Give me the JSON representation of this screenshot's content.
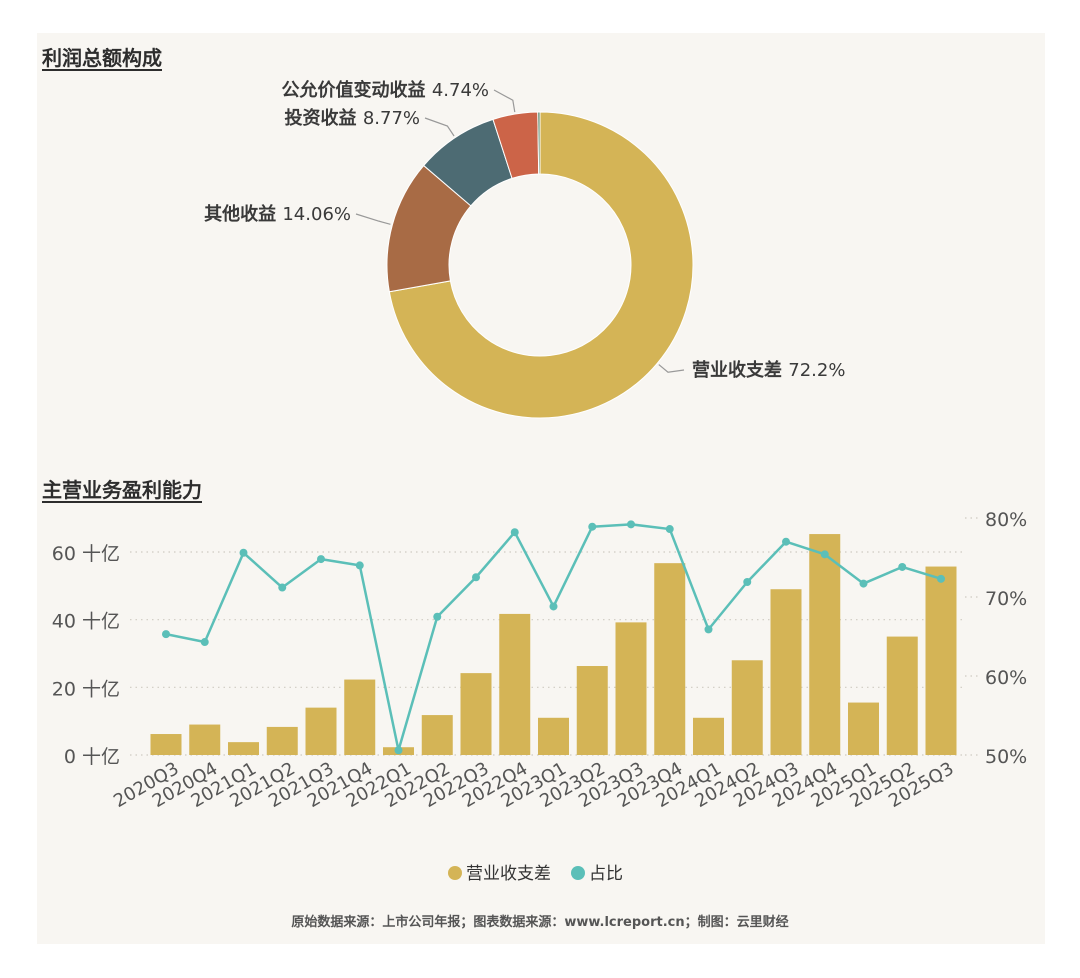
{
  "sections": {
    "donut_title": "利润总额构成",
    "bar_title": "主营业务盈利能力"
  },
  "footer": "原始数据来源：上市公司年报；图表数据来源：www.lcreport.cn；制图：云里财经",
  "chart_data": [
    {
      "type": "pie",
      "style": "donut",
      "title": "利润总额构成",
      "slices": [
        {
          "label": "营业收支差",
          "value": 72.2,
          "display": "72.2%",
          "color": "#d4b456"
        },
        {
          "label": "其他收益",
          "value": 14.06,
          "display": "14.06%",
          "color": "#a86b45"
        },
        {
          "label": "投资收益",
          "value": 8.77,
          "display": "8.77%",
          "color": "#4d6b73"
        },
        {
          "label": "公允价值变动收益",
          "value": 4.74,
          "display": "4.74%",
          "color": "#cc6448"
        },
        {
          "label": "",
          "value": 0.23,
          "display": "",
          "color": "#4a7a5a"
        }
      ]
    },
    {
      "type": "bar",
      "title": "主营业务盈利能力",
      "categories": [
        "2020Q3",
        "2020Q4",
        "2021Q1",
        "2021Q2",
        "2021Q3",
        "2021Q4",
        "2022Q1",
        "2022Q2",
        "2022Q3",
        "2022Q4",
        "2023Q1",
        "2023Q2",
        "2023Q3",
        "2023Q4",
        "2024Q1",
        "2024Q2",
        "2024Q3",
        "2024Q4",
        "2025Q1",
        "2025Q2",
        "2025Q3"
      ],
      "series": [
        {
          "name": "营业收支差",
          "kind": "bar",
          "axis": "left",
          "color": "#d4b456",
          "values": [
            6.2,
            9.0,
            3.8,
            8.3,
            14.0,
            22.3,
            2.3,
            11.8,
            24.2,
            41.7,
            11.0,
            26.3,
            39.2,
            56.7,
            11.0,
            28.0,
            49.0,
            65.3,
            15.5,
            35.0,
            55.7
          ]
        },
        {
          "name": "占比",
          "kind": "line",
          "axis": "right",
          "color": "#5bbfb8",
          "values": [
            65.3,
            64.3,
            75.6,
            71.2,
            74.8,
            74.0,
            50.6,
            67.5,
            72.5,
            78.2,
            68.8,
            78.9,
            79.2,
            78.6,
            65.9,
            71.9,
            77.0,
            75.4,
            71.7,
            73.8,
            72.3
          ]
        }
      ],
      "y_left": {
        "ticks": [
          0,
          20,
          40,
          60
        ],
        "tick_labels": [
          "0 十亿",
          "20 十亿",
          "40 十亿",
          "60 十亿"
        ],
        "range": [
          0,
          70
        ]
      },
      "y_right": {
        "ticks": [
          50,
          60,
          70,
          80
        ],
        "tick_labels": [
          "50%",
          "60%",
          "70%",
          "80%"
        ],
        "range": [
          50,
          80
        ]
      },
      "grid": true,
      "legend": {
        "position": "bottom",
        "items": [
          "营业收支差",
          "占比"
        ]
      }
    }
  ]
}
